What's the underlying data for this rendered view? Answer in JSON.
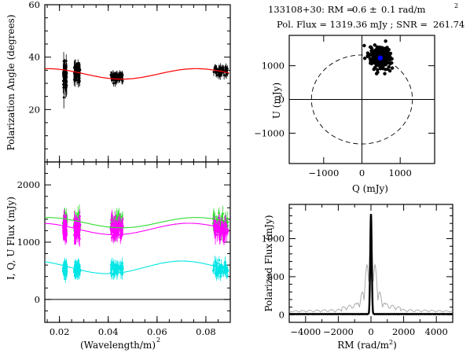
{
  "header": {
    "line1_source": "133108+30: RM =",
    "line1_value": "0.6 ±",
    "line1_error": "0.1 rad/m",
    "line1_sup": "2",
    "line2": "Pol. Flux = 1319.36 mJy ; SNR =",
    "line2_snr": "261.74"
  },
  "chart_data": [
    {
      "id": "pa",
      "type": "scatter",
      "ylabel": "Polarization Angle (degrees)",
      "xlim": [
        0.014,
        0.09
      ],
      "ylim": [
        0,
        60
      ],
      "yticks": [
        "20",
        "40",
        "60"
      ],
      "xticks": [
        0.02,
        0.04,
        0.06,
        0.08
      ],
      "clusters": [
        {
          "x_range": [
            0.0215,
            0.023
          ],
          "y_center": 33,
          "y_spread": 5.5,
          "err": 3
        },
        {
          "x_range": [
            0.026,
            0.0285
          ],
          "y_center": 34,
          "y_spread": 3.5,
          "err": 2
        },
        {
          "x_range": [
            0.041,
            0.046
          ],
          "y_center": 32.5,
          "y_spread": 2.0,
          "err": 1.2
        },
        {
          "x_range": [
            0.083,
            0.089
          ],
          "y_center": 35,
          "y_spread": 2.0,
          "err": 1.2
        }
      ],
      "model": {
        "color": "#ff0000",
        "mean": 33.6,
        "amplitude": 2.0,
        "phase_x": 0.076,
        "period": 0.061
      }
    },
    {
      "id": "flux",
      "type": "scatter",
      "xlabel": "(Wavelength/m)",
      "xlabel_sup": "2",
      "ylabel": "I, Q, U Flux (mJy)",
      "xlim": [
        0.014,
        0.09
      ],
      "ylim": [
        -400,
        2400
      ],
      "yticks": [
        "0",
        "1000",
        "2000"
      ],
      "xticks": [
        "0.02",
        "0.04",
        "0.06",
        "0.08"
      ],
      "series": [
        {
          "color": "#33dd33",
          "y_center": 1330,
          "y_spread": 140
        },
        {
          "color": "#ff00ff",
          "y_center": 1230,
          "y_spread": 170
        },
        {
          "color": "#00e5e5",
          "y_center": 530,
          "y_spread": 110
        }
      ],
      "models": [
        {
          "color": "#33dd33",
          "mean": 1340,
          "amplitude": 90
        },
        {
          "color": "#ff00ff",
          "mean": 1230,
          "amplitude": 100
        },
        {
          "color": "#00e5e5",
          "mean": 560,
          "amplitude": 110
        }
      ]
    },
    {
      "id": "qu",
      "type": "scatter",
      "xlabel": "Q (mJy)",
      "ylabel": "U (mJy)",
      "xlim": [
        -1900,
        1900
      ],
      "ylim": [
        -1900,
        1900
      ],
      "xticks": [
        "−1000",
        "0",
        "1000"
      ],
      "yticks": [
        "−1000",
        "0",
        "1000"
      ],
      "circle_radius": 1319.36,
      "cloud_center": [
        480,
        1230
      ],
      "mean_marker_color": "#0000ff"
    },
    {
      "id": "rmsf",
      "type": "line",
      "xlabel": "RM (rad/m",
      "xlabel_sup": "2",
      "xlabel_close": ")",
      "ylabel": "Polarized Flux (mJy)",
      "xlim": [
        -5000,
        5000
      ],
      "ylim": [
        -100,
        1450
      ],
      "xticks": [
        "−4000",
        "−2000",
        "0",
        "2000",
        "4000"
      ],
      "yticks": [
        "0",
        "500",
        "1000"
      ],
      "peak_rm": 0.6,
      "peak_flux": 1319.36,
      "series": [
        {
          "color": "#aaaaaa"
        },
        {
          "color": "#000000"
        }
      ]
    }
  ]
}
